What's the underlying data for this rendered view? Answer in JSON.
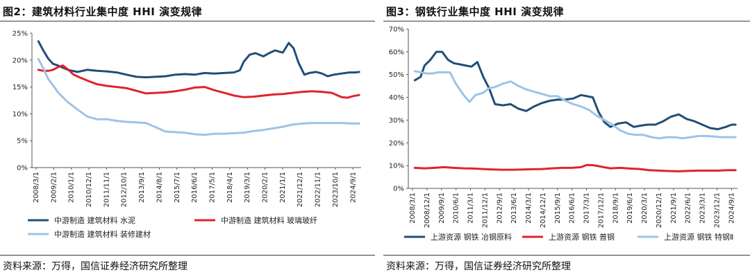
{
  "panels": [
    {
      "title": "图2：建筑材料行业集中度 HHI 演变规律",
      "source": "资料来源：万得，国信证券经济研究所整理"
    },
    {
      "title": "图3：钢铁行业集中度 HHI 演变规律",
      "source": "资料来源：万得，国信证券经济研究所整理"
    }
  ],
  "chart_data": [
    {
      "type": "line",
      "title": "图2：建筑材料行业集中度 HHI 演变规律",
      "xlabel": "",
      "ylabel": "",
      "ylim": [
        0,
        25
      ],
      "xlim": [
        2008.17,
        2025.0
      ],
      "yticks": [
        0,
        5,
        10,
        15,
        20,
        25
      ],
      "ytick_labels": [
        "0%",
        "5%",
        "10%",
        "15%",
        "20%",
        "25%"
      ],
      "xtick_labels": [
        "2008/3/1",
        "2009/2/1",
        "2010/1/1",
        "2010/12/1",
        "2011/11/1",
        "2012/10/1",
        "2013/9/1",
        "2014/8/1",
        "2015/7/1",
        "2016/6/1",
        "2017/5/1",
        "2018/4/1",
        "2019/3/1",
        "2020/2/1",
        "2021/1/1",
        "2021/12/1",
        "2022/11/1",
        "2023/10/1",
        "2024/9/1"
      ],
      "grid": false,
      "legend": "bottom",
      "series": [
        {
          "name": "中游制造 建筑材料 水泥",
          "color": "#1f4e79",
          "x": [
            2008.5,
            2008.75,
            2009.0,
            2009.25,
            2009.5,
            2010.0,
            2010.5,
            2011.0,
            2011.5,
            2012.0,
            2012.5,
            2013.0,
            2013.5,
            2014.0,
            2014.5,
            2015.0,
            2015.5,
            2016.0,
            2016.5,
            2017.0,
            2017.5,
            2018.0,
            2018.5,
            2018.8,
            2019.0,
            2019.3,
            2019.6,
            2020.0,
            2020.3,
            2020.6,
            2021.0,
            2021.3,
            2021.55,
            2021.8,
            2022.1,
            2022.35,
            2022.7,
            2023.0,
            2023.3,
            2023.6,
            2024.0,
            2024.4,
            2024.7,
            2024.9
          ],
          "y": [
            23.5,
            21.8,
            20.3,
            19.3,
            19.0,
            18.2,
            17.8,
            18.2,
            18.0,
            17.9,
            17.7,
            17.3,
            16.9,
            16.8,
            16.9,
            17.0,
            17.3,
            17.4,
            17.3,
            17.6,
            17.5,
            17.6,
            17.7,
            18.1,
            19.7,
            21.0,
            21.3,
            20.7,
            21.3,
            21.8,
            21.4,
            23.2,
            22.2,
            19.5,
            17.3,
            17.6,
            17.8,
            17.5,
            17.0,
            17.3,
            17.5,
            17.7,
            17.7,
            17.8
          ]
        },
        {
          "name": "中游制造 建筑材料 玻璃玻纤",
          "color": "#e0232a",
          "x": [
            2008.5,
            2008.75,
            2009.0,
            2009.25,
            2009.5,
            2009.75,
            2010.0,
            2010.3,
            2010.6,
            2011.0,
            2011.5,
            2012.0,
            2012.5,
            2013.0,
            2013.5,
            2014.0,
            2014.5,
            2015.0,
            2015.5,
            2016.0,
            2016.5,
            2017.0,
            2017.5,
            2018.0,
            2018.5,
            2019.0,
            2019.5,
            2020.0,
            2020.5,
            2021.0,
            2021.5,
            2022.0,
            2022.5,
            2023.0,
            2023.5,
            2024.0,
            2024.3,
            2024.6,
            2024.9
          ],
          "y": [
            18.2,
            18.0,
            18.0,
            18.2,
            18.7,
            19.0,
            18.3,
            17.3,
            16.8,
            16.2,
            15.5,
            15.2,
            15.0,
            14.8,
            14.3,
            13.8,
            13.9,
            14.0,
            14.2,
            14.5,
            14.9,
            15.0,
            14.4,
            13.9,
            13.4,
            13.1,
            13.2,
            13.4,
            13.6,
            13.7,
            13.9,
            14.1,
            14.2,
            14.1,
            13.9,
            13.1,
            13.0,
            13.3,
            13.5
          ]
        },
        {
          "name": "中游制造 建筑材料 装修建材",
          "color": "#9dc3e6",
          "x": [
            2008.5,
            2008.75,
            2009.0,
            2009.25,
            2009.5,
            2010.0,
            2010.5,
            2011.0,
            2011.5,
            2012.0,
            2012.5,
            2013.0,
            2013.5,
            2014.0,
            2014.5,
            2015.0,
            2015.5,
            2016.0,
            2016.5,
            2017.0,
            2017.5,
            2018.0,
            2018.5,
            2019.0,
            2019.5,
            2020.0,
            2020.5,
            2021.0,
            2021.5,
            2022.0,
            2022.5,
            2023.0,
            2023.5,
            2024.0,
            2024.5,
            2024.9
          ],
          "y": [
            20.2,
            18.5,
            16.5,
            15.3,
            14.0,
            12.2,
            10.8,
            9.5,
            9.0,
            9.0,
            8.7,
            8.5,
            8.4,
            8.3,
            7.5,
            6.7,
            6.6,
            6.5,
            6.2,
            6.1,
            6.3,
            6.3,
            6.4,
            6.5,
            6.8,
            7.0,
            7.3,
            7.6,
            8.0,
            8.2,
            8.3,
            8.3,
            8.3,
            8.3,
            8.2,
            8.2
          ]
        }
      ]
    },
    {
      "type": "line",
      "title": "图3：钢铁行业集中度 HHI 演变规律",
      "xlabel": "",
      "ylabel": "",
      "ylim": [
        0,
        70
      ],
      "xlim": [
        2008.17,
        2025.0
      ],
      "yticks": [
        0,
        10,
        20,
        30,
        40,
        50,
        60,
        70
      ],
      "ytick_labels": [
        "0%",
        "10%",
        "20%",
        "30%",
        "40%",
        "50%",
        "60%",
        "70%"
      ],
      "xtick_labels": [
        "2008/3/1",
        "2008/12/1",
        "2009/9/1",
        "2010/6/1",
        "2011/3/1",
        "2011/12/1",
        "2012/9/1",
        "2013/6/1",
        "2014/3/1",
        "2014/12/1",
        "2015/9/1",
        "2016/6/1",
        "2017/3/1",
        "2017/12/1",
        "2018/9/1",
        "2019/6/1",
        "2020/3/1",
        "2020/12/1",
        "2021/9/1",
        "2022/6/1",
        "2023/3/1",
        "2023/12/1",
        "2024/9/1"
      ],
      "grid": false,
      "legend": "bottom",
      "series": [
        {
          "name": "上游资源 钢铁 冶钢原料",
          "color": "#1f4e79",
          "x": [
            2008.5,
            2008.8,
            2009.0,
            2009.3,
            2009.6,
            2009.9,
            2010.2,
            2010.5,
            2010.8,
            2011.1,
            2011.4,
            2011.7,
            2012.0,
            2012.3,
            2012.6,
            2013.0,
            2013.4,
            2013.8,
            2014.2,
            2014.6,
            2015.0,
            2015.4,
            2015.8,
            2016.2,
            2016.6,
            2017.0,
            2017.3,
            2017.6,
            2017.9,
            2018.2,
            2018.5,
            2018.9,
            2019.3,
            2019.7,
            2020.0,
            2020.4,
            2020.8,
            2021.2,
            2021.6,
            2022.0,
            2022.4,
            2022.8,
            2023.2,
            2023.6,
            2024.0,
            2024.4,
            2024.7,
            2024.9
          ],
          "y": [
            47.5,
            49.0,
            54.0,
            56.5,
            60.0,
            60.0,
            56.5,
            55.0,
            54.5,
            54.0,
            53.5,
            55.5,
            49.0,
            44.0,
            37.0,
            36.5,
            37.0,
            35.0,
            34.0,
            36.0,
            37.5,
            38.5,
            39.0,
            39.0,
            39.5,
            41.0,
            40.5,
            40.0,
            33.5,
            29.0,
            27.0,
            28.5,
            29.0,
            27.0,
            27.5,
            28.0,
            28.0,
            29.5,
            31.5,
            32.5,
            30.5,
            29.5,
            28.0,
            26.5,
            26.0,
            27.0,
            28.0,
            28.0
          ]
        },
        {
          "name": "上游资源 钢铁 普钢",
          "color": "#e0232a",
          "x": [
            2008.5,
            2009.0,
            2009.5,
            2010.0,
            2010.5,
            2011.0,
            2011.5,
            2012.0,
            2012.5,
            2013.0,
            2013.5,
            2014.0,
            2014.5,
            2015.0,
            2015.5,
            2016.0,
            2016.5,
            2017.0,
            2017.3,
            2017.6,
            2018.0,
            2018.5,
            2019.0,
            2019.5,
            2020.0,
            2020.5,
            2021.0,
            2021.5,
            2022.0,
            2022.5,
            2023.0,
            2023.5,
            2024.0,
            2024.5,
            2024.9
          ],
          "y": [
            9.0,
            8.8,
            9.0,
            9.3,
            9.0,
            8.8,
            8.7,
            8.5,
            8.3,
            8.2,
            8.2,
            8.3,
            8.4,
            8.5,
            8.8,
            9.0,
            9.0,
            9.3,
            10.3,
            10.2,
            9.6,
            8.8,
            9.0,
            8.7,
            8.5,
            8.0,
            7.8,
            7.6,
            7.5,
            7.7,
            7.8,
            7.8,
            7.8,
            8.0,
            8.0
          ]
        },
        {
          "name": "上游资源 钢铁 特钢Ⅱ",
          "color": "#9dc3e6",
          "x": [
            2008.5,
            2008.8,
            2009.1,
            2009.4,
            2009.7,
            2010.0,
            2010.3,
            2010.6,
            2011.0,
            2011.3,
            2011.6,
            2012.0,
            2012.3,
            2012.6,
            2013.0,
            2013.4,
            2013.8,
            2014.2,
            2014.6,
            2015.0,
            2015.4,
            2015.8,
            2016.2,
            2016.6,
            2017.0,
            2017.4,
            2017.8,
            2018.2,
            2018.6,
            2019.0,
            2019.4,
            2019.8,
            2020.2,
            2020.6,
            2021.0,
            2021.4,
            2021.8,
            2022.2,
            2022.6,
            2023.0,
            2023.4,
            2023.8,
            2024.2,
            2024.6,
            2024.9
          ],
          "y": [
            51.5,
            51.0,
            50.5,
            50.5,
            51.0,
            51.0,
            51.0,
            46.0,
            41.0,
            38.0,
            41.0,
            42.0,
            44.0,
            44.5,
            46.0,
            47.0,
            45.0,
            43.5,
            42.5,
            41.5,
            40.5,
            40.5,
            38.5,
            37.0,
            36.0,
            34.5,
            32.0,
            30.0,
            28.0,
            25.5,
            24.0,
            23.5,
            23.5,
            22.5,
            22.0,
            22.5,
            22.5,
            22.0,
            22.5,
            23.0,
            23.0,
            22.8,
            22.5,
            22.5,
            22.5
          ]
        }
      ]
    }
  ]
}
